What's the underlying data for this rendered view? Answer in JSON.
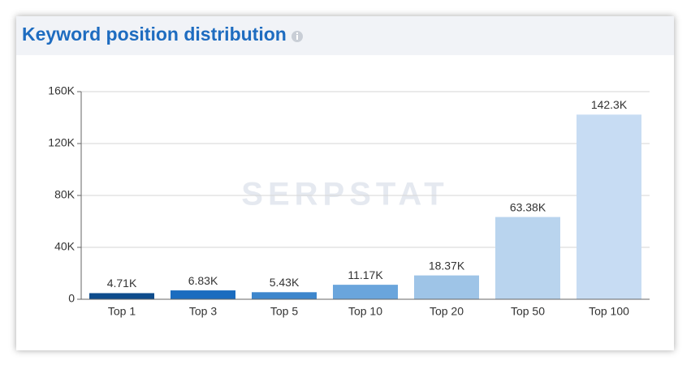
{
  "chart_data": {
    "type": "bar",
    "title": "Keyword position distribution",
    "watermark": "SERPSTAT",
    "categories": [
      "Top 1",
      "Top 3",
      "Top 5",
      "Top 10",
      "Top 20",
      "Top 50",
      "Top 100"
    ],
    "values": [
      4710,
      6830,
      5430,
      11170,
      18370,
      63380,
      142300
    ],
    "value_labels": [
      "4.71K",
      "6.83K",
      "5.43K",
      "11.17K",
      "18.37K",
      "63.38K",
      "142.3K"
    ],
    "colors": [
      "#0e4c8c",
      "#1b6cbf",
      "#3d86cc",
      "#6aa5dc",
      "#9ec4e7",
      "#b9d4ee",
      "#c7dcf3"
    ],
    "ylim": [
      0,
      160000
    ],
    "yticks": [
      0,
      {
        "value": 40000,
        "label": "40K"
      },
      {
        "value": 80000,
        "label": "80K"
      },
      {
        "value": 120000,
        "label": "120K"
      },
      {
        "value": 160000,
        "label": "160K"
      }
    ],
    "grid": true
  }
}
